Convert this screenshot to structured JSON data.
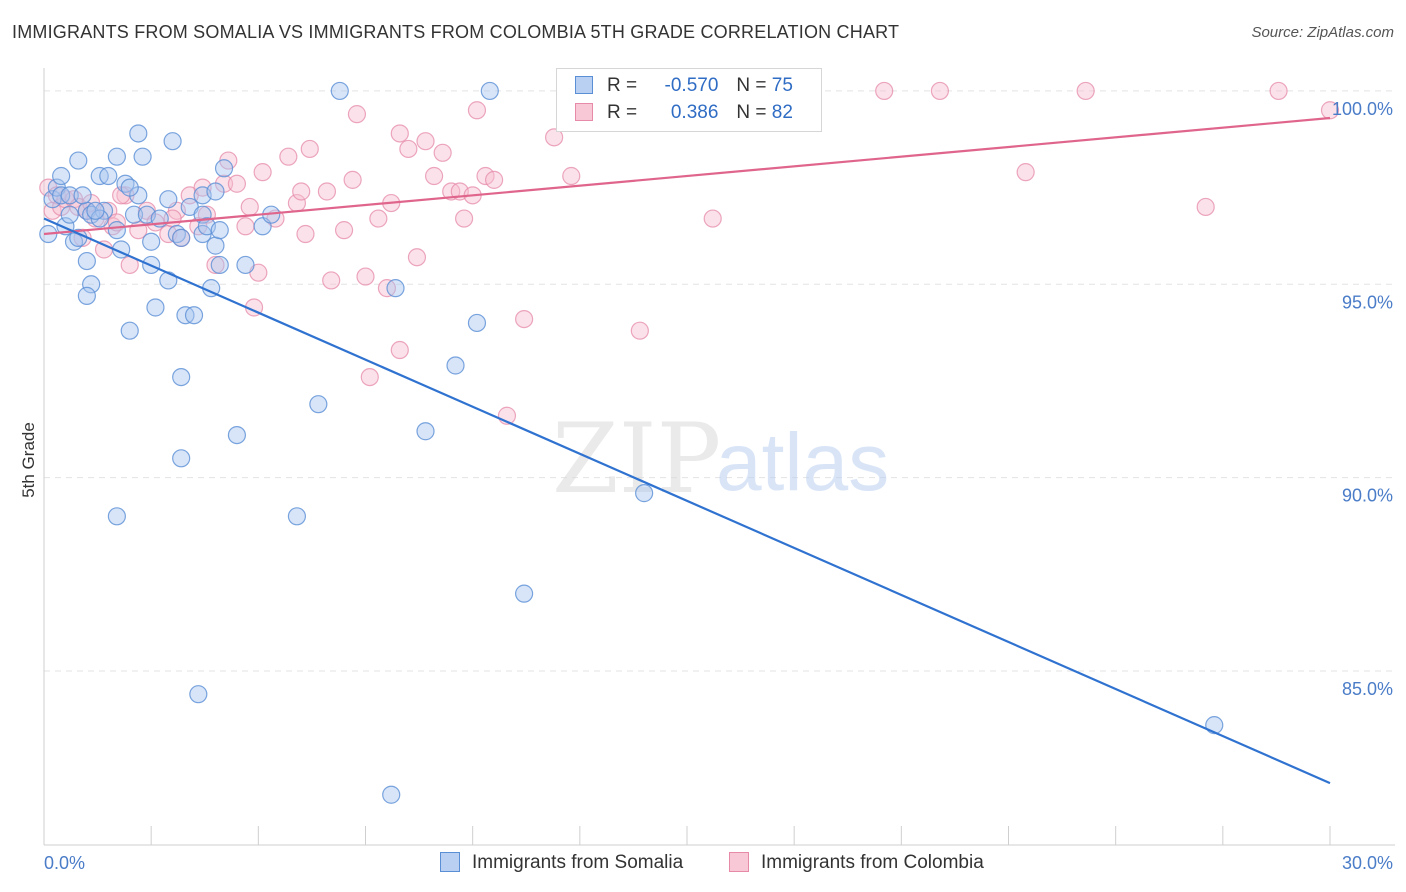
{
  "title": "IMMIGRANTS FROM SOMALIA VS IMMIGRANTS FROM COLOMBIA 5TH GRADE CORRELATION CHART",
  "source": "Source: ZipAtlas.com",
  "watermark": {
    "zip": "ZIP",
    "atlas": "atlas"
  },
  "legend_top": [
    {
      "r_label": "R =",
      "r_value": "-0.570",
      "n_label": "N =",
      "n_value": "75"
    },
    {
      "r_label": "R =",
      "r_value": "0.386",
      "n_label": "N =",
      "n_value": "82"
    }
  ],
  "colors": {
    "somalia_fill": "#a9c6ef",
    "somalia_stroke": "#5a8fd6",
    "somalia_line": "#2f72d0",
    "colombia_fill": "#f6bfd0",
    "colombia_stroke": "#e68aa8",
    "colombia_line": "#e0658c",
    "grid": "#e3e3e3",
    "axis_text": "#4a7cc8"
  },
  "chart_data": {
    "type": "scatter",
    "xlabel": "",
    "ylabel": "5th Grade",
    "xlim": [
      0,
      30
    ],
    "ylim": [
      80.5,
      100.8
    ],
    "x_tick_labels": [
      {
        "v": 0,
        "label": "0.0%"
      },
      {
        "v": 30,
        "label": "30.0%"
      }
    ],
    "y_tick_labels": [
      {
        "v": 100,
        "label": "100.0%"
      },
      {
        "v": 95,
        "label": "95.0%"
      },
      {
        "v": 90,
        "label": "90.0%"
      },
      {
        "v": 85,
        "label": "85.0%"
      }
    ],
    "grid": true,
    "legend_position": "bottom",
    "series": [
      {
        "name": "Immigrants from Somalia",
        "trend": {
          "x": [
            0,
            30
          ],
          "y": [
            96.7,
            82.1
          ]
        },
        "points": [
          [
            0.1,
            96.3
          ],
          [
            0.2,
            97.2
          ],
          [
            0.3,
            97.5
          ],
          [
            0.4,
            97.3
          ],
          [
            0.4,
            97.8
          ],
          [
            0.5,
            96.5
          ],
          [
            0.6,
            97.3
          ],
          [
            0.6,
            96.8
          ],
          [
            0.7,
            96.1
          ],
          [
            0.8,
            96.2
          ],
          [
            0.8,
            98.2
          ],
          [
            1.0,
            96.9
          ],
          [
            1.0,
            95.6
          ],
          [
            1.1,
            96.8
          ],
          [
            1.1,
            95.0
          ],
          [
            1.0,
            94.7
          ],
          [
            1.3,
            97.8
          ],
          [
            1.4,
            96.9
          ],
          [
            1.3,
            96.7
          ],
          [
            1.5,
            97.8
          ],
          [
            1.7,
            98.3
          ],
          [
            1.9,
            97.6
          ],
          [
            1.7,
            96.4
          ],
          [
            1.8,
            95.9
          ],
          [
            2.1,
            96.8
          ],
          [
            2.2,
            97.3
          ],
          [
            2.0,
            97.5
          ],
          [
            2.2,
            98.9
          ],
          [
            2.3,
            98.3
          ],
          [
            2.4,
            96.8
          ],
          [
            2.5,
            96.1
          ],
          [
            2.5,
            95.5
          ],
          [
            2.6,
            94.4
          ],
          [
            2.9,
            97.2
          ],
          [
            2.9,
            95.1
          ],
          [
            3.0,
            98.7
          ],
          [
            3.1,
            96.3
          ],
          [
            3.2,
            96.2
          ],
          [
            3.2,
            92.6
          ],
          [
            3.3,
            94.2
          ],
          [
            3.4,
            97.0
          ],
          [
            3.5,
            94.2
          ],
          [
            3.7,
            97.3
          ],
          [
            3.7,
            96.8
          ],
          [
            3.7,
            96.3
          ],
          [
            3.8,
            96.5
          ],
          [
            4.0,
            97.4
          ],
          [
            3.9,
            94.9
          ],
          [
            4.0,
            96.0
          ],
          [
            4.1,
            96.4
          ],
          [
            4.1,
            95.5
          ],
          [
            4.2,
            98.0
          ],
          [
            2.0,
            93.8
          ],
          [
            3.2,
            90.5
          ],
          [
            1.7,
            89.0
          ],
          [
            4.5,
            91.1
          ],
          [
            4.7,
            95.5
          ],
          [
            5.1,
            96.5
          ],
          [
            5.3,
            96.8
          ],
          [
            5.9,
            89.0
          ],
          [
            6.4,
            91.9
          ],
          [
            6.9,
            100.0
          ],
          [
            8.2,
            94.9
          ],
          [
            8.9,
            91.2
          ],
          [
            9.6,
            92.9
          ],
          [
            10.1,
            94.0
          ],
          [
            10.4,
            100.0
          ],
          [
            11.2,
            87.0
          ],
          [
            14.0,
            89.6
          ],
          [
            8.1,
            81.8
          ],
          [
            3.6,
            84.4
          ],
          [
            27.3,
            83.6
          ],
          [
            1.2,
            96.9
          ],
          [
            2.7,
            96.7
          ],
          [
            0.9,
            97.3
          ]
        ]
      },
      {
        "name": "Immigrants from Colombia",
        "trend": {
          "x": [
            0,
            30
          ],
          "y": [
            96.3,
            99.3
          ]
        },
        "points": [
          [
            0.1,
            97.5
          ],
          [
            0.2,
            96.9
          ],
          [
            0.3,
            97.3
          ],
          [
            0.4,
            97.0
          ],
          [
            0.5,
            97.2
          ],
          [
            0.7,
            97.2
          ],
          [
            0.8,
            97.0
          ],
          [
            0.9,
            96.2
          ],
          [
            1.0,
            96.9
          ],
          [
            1.1,
            97.1
          ],
          [
            1.2,
            96.7
          ],
          [
            1.4,
            95.9
          ],
          [
            1.5,
            96.9
          ],
          [
            1.6,
            96.5
          ],
          [
            1.7,
            96.6
          ],
          [
            1.9,
            97.3
          ],
          [
            2.0,
            95.5
          ],
          [
            2.2,
            96.4
          ],
          [
            2.4,
            96.9
          ],
          [
            2.6,
            96.6
          ],
          [
            2.9,
            96.3
          ],
          [
            3.1,
            96.9
          ],
          [
            3.2,
            96.2
          ],
          [
            3.4,
            97.3
          ],
          [
            3.6,
            96.5
          ],
          [
            3.7,
            97.5
          ],
          [
            3.8,
            96.8
          ],
          [
            4.0,
            95.5
          ],
          [
            4.2,
            97.6
          ],
          [
            4.3,
            98.2
          ],
          [
            4.5,
            97.6
          ],
          [
            4.7,
            96.5
          ],
          [
            4.8,
            97.0
          ],
          [
            5.0,
            95.3
          ],
          [
            5.1,
            97.9
          ],
          [
            5.4,
            96.7
          ],
          [
            5.7,
            98.3
          ],
          [
            5.9,
            97.1
          ],
          [
            6.0,
            97.4
          ],
          [
            6.2,
            98.5
          ],
          [
            6.6,
            97.4
          ],
          [
            6.7,
            95.1
          ],
          [
            7.0,
            96.4
          ],
          [
            7.2,
            97.7
          ],
          [
            7.5,
            95.2
          ],
          [
            7.6,
            92.6
          ],
          [
            7.8,
            96.7
          ],
          [
            8.0,
            94.9
          ],
          [
            8.1,
            97.1
          ],
          [
            8.3,
            98.9
          ],
          [
            8.3,
            93.3
          ],
          [
            8.5,
            98.5
          ],
          [
            8.7,
            95.7
          ],
          [
            8.9,
            98.7
          ],
          [
            9.1,
            97.8
          ],
          [
            9.3,
            98.4
          ],
          [
            9.5,
            97.4
          ],
          [
            9.7,
            97.4
          ],
          [
            9.8,
            96.7
          ],
          [
            10.0,
            97.3
          ],
          [
            10.1,
            99.5
          ],
          [
            10.3,
            97.8
          ],
          [
            10.5,
            97.7
          ],
          [
            10.8,
            91.6
          ],
          [
            11.2,
            94.1
          ],
          [
            11.9,
            98.8
          ],
          [
            12.3,
            97.8
          ],
          [
            13.9,
            93.8
          ],
          [
            14.0,
            100.0
          ],
          [
            15.6,
            96.7
          ],
          [
            19.6,
            100.0
          ],
          [
            20.9,
            100.0
          ],
          [
            22.9,
            97.9
          ],
          [
            24.3,
            100.0
          ],
          [
            27.1,
            97.0
          ],
          [
            28.8,
            100.0
          ],
          [
            30.0,
            99.5
          ],
          [
            7.3,
            99.4
          ],
          [
            4.9,
            94.4
          ],
          [
            6.1,
            96.3
          ],
          [
            1.8,
            97.3
          ],
          [
            3.0,
            96.7
          ]
        ]
      }
    ]
  }
}
